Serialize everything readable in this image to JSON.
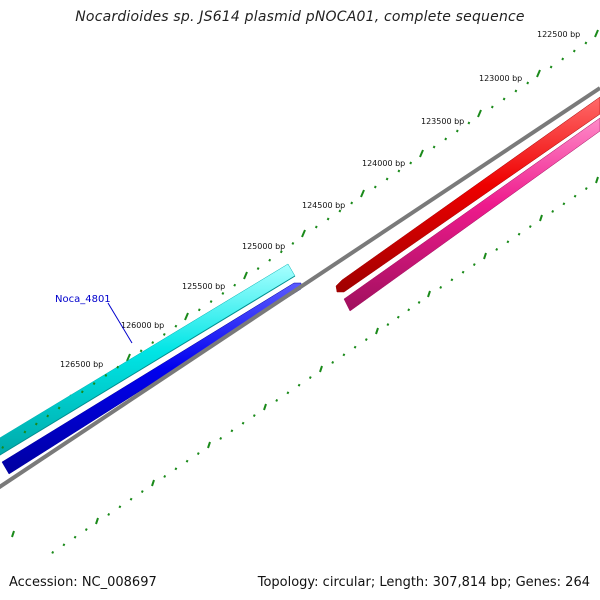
{
  "title": "Nocardioides sp. JS614 plasmid pNOCA01, complete sequence",
  "footer": {
    "accession": "Accession: NC_008697",
    "summary": "Topology: circular; Length: 307,814 bp; Genes: 264"
  },
  "ticks": [
    {
      "label": "122500 bp"
    },
    {
      "label": "123000 bp"
    },
    {
      "label": "123500 bp"
    },
    {
      "label": "124000 bp"
    },
    {
      "label": "124500 bp"
    },
    {
      "label": "125000 bp"
    },
    {
      "label": "125500 bp"
    },
    {
      "label": "126000 bp"
    },
    {
      "label": "126500 bp"
    }
  ],
  "gene_label": "Noca_4801",
  "colors": {
    "backbone": "#7a7a7a",
    "tick_marks": "#1a8a1a",
    "gene_cyan": "#00e5e5",
    "gene_blue": "#0000ee",
    "gene_red": "#ee0000",
    "gene_pink": "#ee1a8c",
    "gene_label": "#0000cc"
  }
}
